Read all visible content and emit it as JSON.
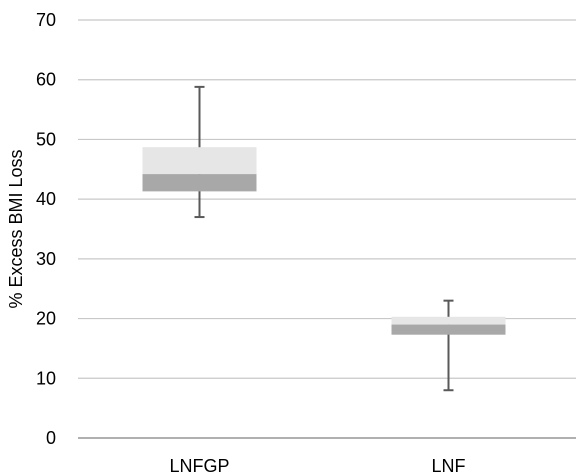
{
  "chart_data": {
    "type": "box",
    "title": "",
    "xlabel": "",
    "ylabel": "% Excess BMI Loss",
    "ylim": [
      0,
      70
    ],
    "yticks": [
      0,
      10,
      20,
      30,
      40,
      50,
      60,
      70
    ],
    "grid": true,
    "legend": "none",
    "categories": [
      "LNFGP",
      "LNF"
    ],
    "boxes": [
      {
        "category": "LNFGP",
        "min": 37,
        "q1": 41.3,
        "median": 44.2,
        "q3": 48.7,
        "max": 58.8
      },
      {
        "category": "LNF",
        "min": 8,
        "q1": 17.3,
        "median": 19,
        "q3": 20.3,
        "max": 23
      }
    ],
    "colors": {
      "upper_box": "#e6e6e6",
      "lower_box": "#a8a8a8",
      "whisker": "#595959",
      "grid": "#c8c8c8",
      "axis": "#808080"
    }
  }
}
